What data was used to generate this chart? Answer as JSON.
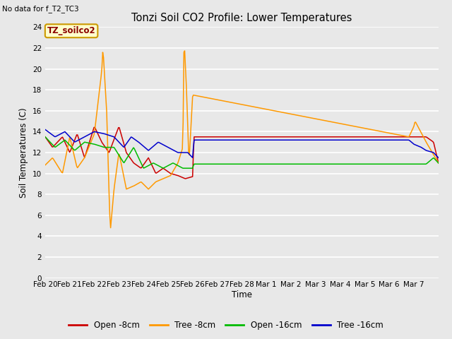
{
  "title": "Tonzi Soil CO2 Profile: Lower Temperatures",
  "subtitle": "No data for f_T2_TC3",
  "xlabel": "Time",
  "ylabel": "Soil Temperatures (C)",
  "ylim": [
    0,
    24
  ],
  "yticks": [
    0,
    2,
    4,
    6,
    8,
    10,
    12,
    14,
    16,
    18,
    20,
    22,
    24
  ],
  "xtick_labels": [
    "Feb 20",
    "Feb 21",
    "Feb 22",
    "Feb 23",
    "Feb 24",
    "Feb 25",
    "Feb 26",
    "Feb 27",
    "Feb 28",
    "Mar 1",
    "Mar 2",
    "Mar 3",
    "Mar 4",
    "Mar 5",
    "Mar 6",
    "Mar 7"
  ],
  "legend_label_box": "TZ_soilco2",
  "colors": {
    "open_8cm": "#cc0000",
    "tree_8cm": "#ff9900",
    "open_16cm": "#00bb00",
    "tree_16cm": "#0000cc"
  },
  "bg_color": "#e8e8e8",
  "grid_color": "#ffffff",
  "legend_entries": [
    "Open -8cm",
    "Tree -8cm",
    "Open -16cm",
    "Tree -16cm"
  ]
}
